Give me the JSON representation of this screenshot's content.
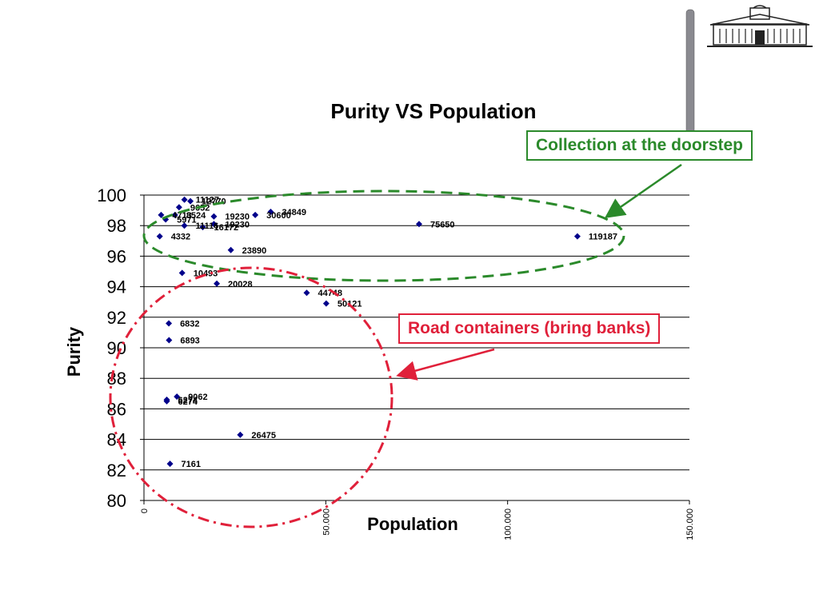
{
  "chart_data": {
    "type": "scatter",
    "title": "Purity VS Population",
    "xlabel": "Population",
    "ylabel": "Purity",
    "xlim": [
      0,
      150000
    ],
    "ylim": [
      80,
      100
    ],
    "x_ticks": [
      "0",
      "50.000",
      "100.000",
      "150.000"
    ],
    "y_ticks": [
      "80",
      "82",
      "84",
      "86",
      "88",
      "90",
      "92",
      "94",
      "96",
      "98",
      "100"
    ],
    "grid": "horizontal",
    "marker_color": "#00008b",
    "points": [
      {
        "x": 11127,
        "y": 99.7,
        "label": "11127"
      },
      {
        "x": 12770,
        "y": 99.6,
        "label": "12770"
      },
      {
        "x": 9652,
        "y": 99.2,
        "label": "9652"
      },
      {
        "x": 4713,
        "y": 98.7,
        "label": "4713"
      },
      {
        "x": 8524,
        "y": 98.7,
        "label": "8524"
      },
      {
        "x": 19230,
        "y": 98.6,
        "label": "19230"
      },
      {
        "x": 30600,
        "y": 98.7,
        "label": "30600"
      },
      {
        "x": 34849,
        "y": 98.9,
        "label": "34849"
      },
      {
        "x": 5971,
        "y": 98.4,
        "label": "5971"
      },
      {
        "x": 11116,
        "y": 98.0,
        "label": "11116"
      },
      {
        "x": 16172,
        "y": 97.9,
        "label": "16172"
      },
      {
        "x": 19230,
        "y": 98.1,
        "label": "19230"
      },
      {
        "x": 75650,
        "y": 98.1,
        "label": "75650"
      },
      {
        "x": 4332,
        "y": 97.3,
        "label": "4332"
      },
      {
        "x": 119187,
        "y": 97.3,
        "label": "119187"
      },
      {
        "x": 23890,
        "y": 96.4,
        "label": "23890"
      },
      {
        "x": 10493,
        "y": 94.9,
        "label": "10493"
      },
      {
        "x": 20028,
        "y": 94.2,
        "label": "20028"
      },
      {
        "x": 44748,
        "y": 93.6,
        "label": "44748"
      },
      {
        "x": 50121,
        "y": 92.9,
        "label": "50121"
      },
      {
        "x": 6832,
        "y": 91.6,
        "label": "6832"
      },
      {
        "x": 6893,
        "y": 90.5,
        "label": "6893"
      },
      {
        "x": 9062,
        "y": 86.8,
        "label": "9062"
      },
      {
        "x": 6274,
        "y": 86.5,
        "label": "6274"
      },
      {
        "x": 6274,
        "y": 86.6,
        "label": "6274"
      },
      {
        "x": 26475,
        "y": 84.3,
        "label": "26475"
      },
      {
        "x": 7161,
        "y": 82.4,
        "label": "7161"
      }
    ]
  },
  "callouts": {
    "doorstep": "Collection at the doorstep",
    "road": "Road containers (bring banks)"
  },
  "colors": {
    "doorstep": "#2b8a2b",
    "road": "#e0203a"
  }
}
